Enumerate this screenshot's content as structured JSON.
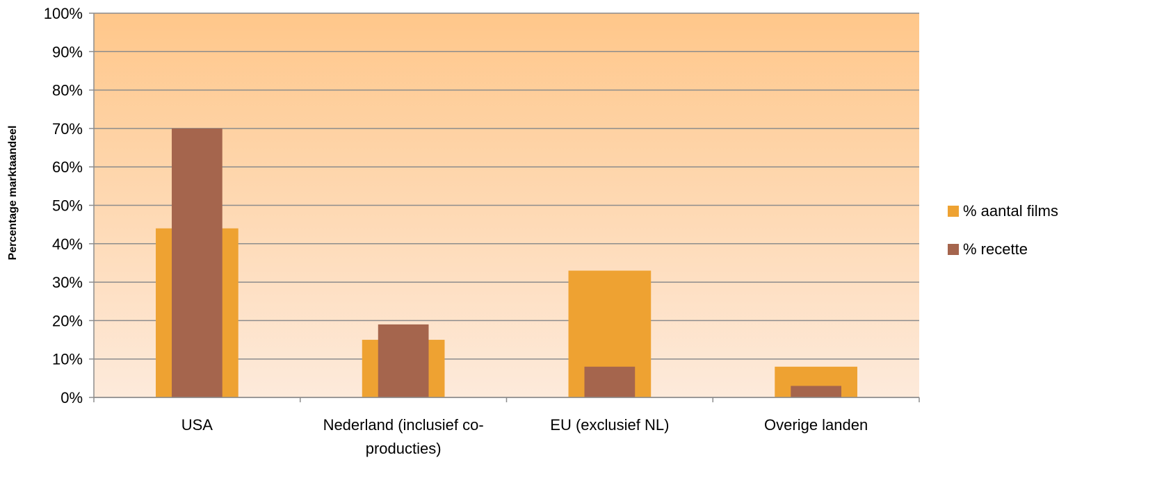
{
  "chart_data": {
    "type": "bar",
    "categories": [
      "USA",
      "Nederland (inclusief co-producties)",
      "EU (exclusief NL)",
      "Overige landen"
    ],
    "category_lines": [
      [
        "USA"
      ],
      [
        "Nederland (inclusief co-",
        "producties)"
      ],
      [
        "EU (exclusief NL)"
      ],
      [
        "Overige landen"
      ]
    ],
    "series": [
      {
        "name": "% aantal films",
        "values": [
          44,
          15,
          33,
          8
        ],
        "color": "#EEA232"
      },
      {
        "name": "% recette",
        "values": [
          70,
          19,
          8,
          3
        ],
        "color": "#A5654D"
      }
    ],
    "ylabel": "Percentage marktaandeel",
    "ylim": [
      0,
      100
    ],
    "yticks": [
      "0%",
      "10%",
      "20%",
      "30%",
      "40%",
      "50%",
      "60%",
      "70%",
      "80%",
      "90%",
      "100%"
    ],
    "grid": true,
    "legend_position": "right",
    "background_gradient": [
      "#FFC78A",
      "#FDEADB"
    ]
  }
}
